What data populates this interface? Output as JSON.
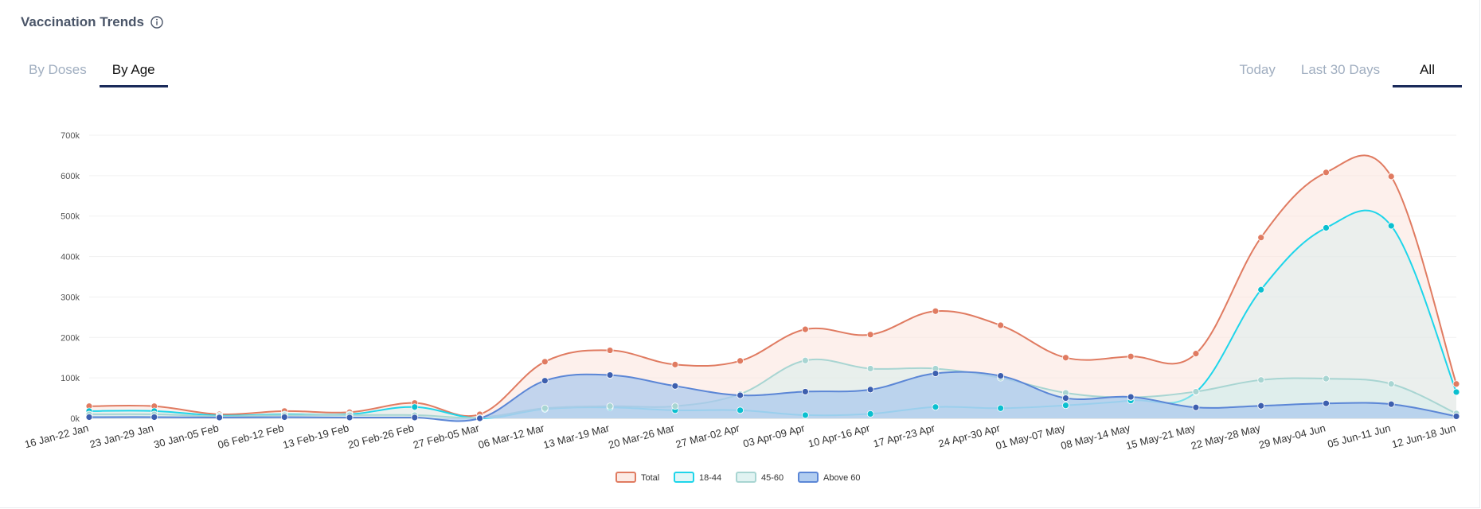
{
  "header": {
    "title": "Vaccination Trends"
  },
  "tabs_left": [
    {
      "label": "By Doses",
      "active": false
    },
    {
      "label": "By Age",
      "active": true
    }
  ],
  "tabs_right": [
    {
      "label": "Today",
      "active": false
    },
    {
      "label": "Last 30 Days",
      "active": false
    },
    {
      "label": "All",
      "active": true
    }
  ],
  "chart_data": {
    "type": "area",
    "categories": [
      "16 Jan-22 Jan",
      "23 Jan-29 Jan",
      "30 Jan-05 Feb",
      "06 Feb-12 Feb",
      "13 Feb-19 Feb",
      "20 Feb-26 Feb",
      "27 Feb-05 Mar",
      "06 Mar-12 Mar",
      "13 Mar-19 Mar",
      "20 Mar-26 Mar",
      "27 Mar-02 Apr",
      "03 Apr-09 Apr",
      "10 Apr-16 Apr",
      "17 Apr-23 Apr",
      "24 Apr-30 Apr",
      "01 May-07 May",
      "08 May-14 May",
      "15 May-21 May",
      "22 May-28 May",
      "29 May-04 Jun",
      "05 Jun-11 Jun",
      "12 Jun-18 Jun"
    ],
    "yticks": [
      "0k",
      "100k",
      "200k",
      "300k",
      "400k",
      "500k",
      "600k",
      "700k"
    ],
    "ylim": [
      0,
      700000
    ],
    "series": [
      {
        "name": "Total",
        "color": "#e07b61",
        "fill": "#fbe4dc",
        "fill_opacity": 0.55,
        "values": [
          30000,
          30000,
          10000,
          18000,
          15000,
          38000,
          10000,
          140000,
          168000,
          133000,
          142000,
          220000,
          207000,
          265000,
          230000,
          150000,
          153000,
          160000,
          447000,
          608000,
          598000,
          85000
        ]
      },
      {
        "name": "18-44",
        "color": "#1ed5ea",
        "fill": "#c8eef0",
        "fill_opacity": 0.35,
        "values": [
          18000,
          18000,
          7000,
          10000,
          10000,
          28000,
          0,
          23000,
          27000,
          20000,
          20000,
          8000,
          11000,
          28000,
          25000,
          32000,
          44000,
          65000,
          318000,
          471000,
          476000,
          65000
        ]
      },
      {
        "name": "45-60",
        "color": "#a8d5d2",
        "fill": "#d4eeec",
        "fill_opacity": 0.5,
        "values": [
          10000,
          10000,
          5000,
          8000,
          8000,
          8000,
          2000,
          25000,
          30000,
          30000,
          60000,
          143000,
          123000,
          123000,
          100000,
          63000,
          52000,
          66000,
          95000,
          98000,
          85000,
          12000
        ]
      },
      {
        "name": "Above 60",
        "color": "#5b86d6",
        "fill": "#a8c8ee",
        "fill_opacity": 0.7,
        "values": [
          3000,
          3000,
          2000,
          3000,
          2000,
          2000,
          0,
          93000,
          107000,
          80000,
          57000,
          66000,
          71000,
          111000,
          105000,
          50000,
          53000,
          27000,
          31000,
          37000,
          35000,
          5000
        ]
      }
    ],
    "legend": [
      "Total",
      "18-44",
      "45-60",
      "Above 60"
    ],
    "legend_placement": "bottom-center",
    "grid": true
  }
}
